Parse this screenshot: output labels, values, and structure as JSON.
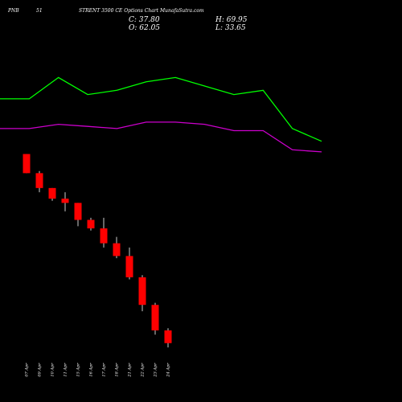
{
  "header": {
    "exchange": "PNB",
    "tag": "51",
    "title": "STRENT 3500 CE Options Chart MunafaSutra.com",
    "close_label": "C: 37.80",
    "high_label": "H: 69.95",
    "open_label": "O: 62.05",
    "low_label": "L: 33.65"
  },
  "colors": {
    "background": "#000000",
    "up": "#00ff00",
    "down": "#ff0000",
    "line_upper": "#00ff00",
    "line_lower": "#cc00cc",
    "wick": "#ffffff"
  },
  "chart_data": {
    "type": "candlestick",
    "categories": [
      "07 Apr",
      "09 Apr",
      "10 Apr",
      "11 Apr",
      "15 Apr",
      "16 Apr",
      "17 Apr",
      "18 Apr",
      "21 Apr",
      "22 Apr",
      "23 Apr",
      "24 Apr"
    ],
    "candles": [
      {
        "open": 142.0,
        "high": 142.0,
        "low": 137.5,
        "close": 137.5
      },
      {
        "open": 137.5,
        "high": 138.0,
        "low": 133.0,
        "close": 134.0
      },
      {
        "open": 134.0,
        "high": 134.0,
        "low": 131.0,
        "close": 131.5
      },
      {
        "open": 131.5,
        "high": 133.0,
        "low": 128.5,
        "close": 130.5
      },
      {
        "open": 130.5,
        "high": 130.5,
        "low": 125.0,
        "close": 126.5
      },
      {
        "open": 126.5,
        "high": 127.0,
        "low": 124.0,
        "close": 124.5
      },
      {
        "open": 124.5,
        "high": 127.0,
        "low": 120.0,
        "close": 121.0
      },
      {
        "open": 121.0,
        "high": 122.5,
        "low": 117.5,
        "close": 118.0
      },
      {
        "open": 118.0,
        "high": 120.0,
        "low": 112.5,
        "close": 113.0
      },
      {
        "open": 113.0,
        "high": 113.5,
        "low": 105.0,
        "close": 106.5
      },
      {
        "open": 106.5,
        "high": 107.0,
        "low": 99.5,
        "close": 100.5
      },
      {
        "open": 100.5,
        "high": 101.0,
        "low": 96.5,
        "close": 97.5
      }
    ],
    "series": [
      {
        "values": [
          155.0,
          155.0,
          160.0,
          156.0,
          157.0,
          159.0,
          160.0,
          158.0,
          156.0,
          157.0,
          148.0,
          145.0
        ]
      },
      {
        "values": [
          148.0,
          148.0,
          149.0,
          148.5,
          148.0,
          149.5,
          149.5,
          149.0,
          147.5,
          147.5,
          143.0,
          142.5
        ]
      }
    ],
    "ylim": [
      95,
      165
    ],
    "grid": false,
    "legend": "none"
  }
}
